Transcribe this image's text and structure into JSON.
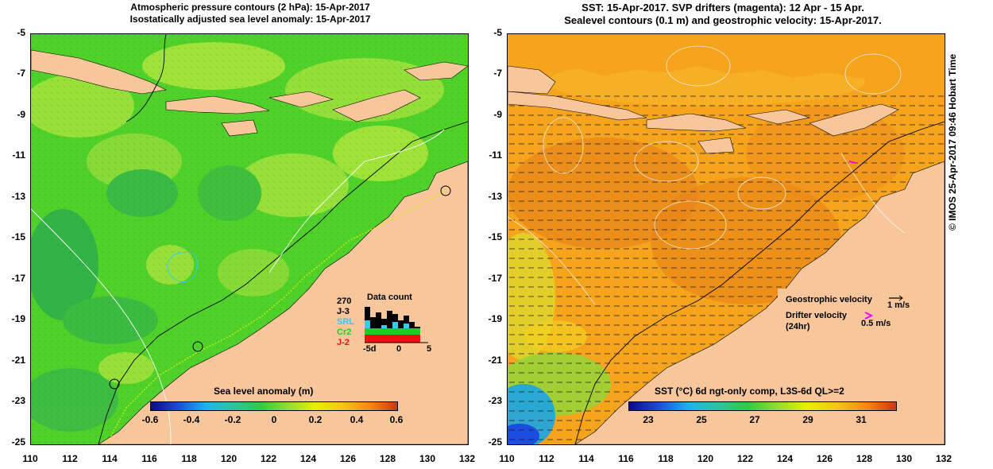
{
  "left_panel": {
    "title_line1": "Atmospheric pressure contours (2 hPa): 15-Apr-2017",
    "title_line2": "Isostatically adjusted sea level anomaly: 15-Apr-2017",
    "colorbar": {
      "title": "Sea level anomaly (m)",
      "tick_labels": [
        "-0.6",
        "-0.4",
        "-0.2",
        "0",
        "0.2",
        "0.4",
        "0.6"
      ],
      "range": [
        -0.6,
        0.6
      ]
    },
    "data_count": {
      "title": "Data count",
      "max_label": "270",
      "missions": [
        {
          "label": "J-3",
          "color": "#000000"
        },
        {
          "label": "SRL",
          "color": "#33ccee"
        },
        {
          "label": "Cr2",
          "color": "#22cc22"
        },
        {
          "label": "J-2",
          "color": "#ee1111"
        }
      ],
      "x_labels": [
        "-5d",
        "0",
        "5"
      ]
    }
  },
  "right_panel": {
    "title_line1": "SST: 15-Apr-2017. SVP drifters (magenta): 12 Apr - 15 Apr.",
    "title_line2": "Sealevel contours (0.1 m) and geostrophic velocity: 15-Apr-2017.",
    "legend": {
      "geostrophic_label": "Geostrophic velocity",
      "geostrophic_scale": "1 m/s",
      "drifter_label": "Drifter velocity",
      "drifter_sub": "(24hr)",
      "drifter_scale": "0.5 m/s",
      "drifter_color": "#ff00ff"
    },
    "colorbar": {
      "title": "SST (°C) 6d ngt-only comp, L3S-6d QL>=2",
      "tick_labels": [
        "23",
        "25",
        "27",
        "29",
        "31"
      ],
      "range": [
        22,
        32
      ]
    }
  },
  "axes": {
    "y_tick_labels": [
      "-5",
      "-7",
      "-9",
      "-11",
      "-13",
      "-15",
      "-17",
      "-19",
      "-21",
      "-23",
      "-25"
    ],
    "x_tick_labels": [
      "110",
      "112",
      "114",
      "116",
      "118",
      "120",
      "122",
      "124",
      "126",
      "128",
      "130",
      "132"
    ],
    "lon_range": [
      110,
      132
    ],
    "lat_range": [
      -25,
      -5
    ]
  },
  "credit": "© IMOS 25-Apr-2017 09:46 Hobart Time",
  "colors": {
    "land": "#f7c79b",
    "sla_ocean": "#4fd12a",
    "sst_ocean": "#f6a41e"
  }
}
